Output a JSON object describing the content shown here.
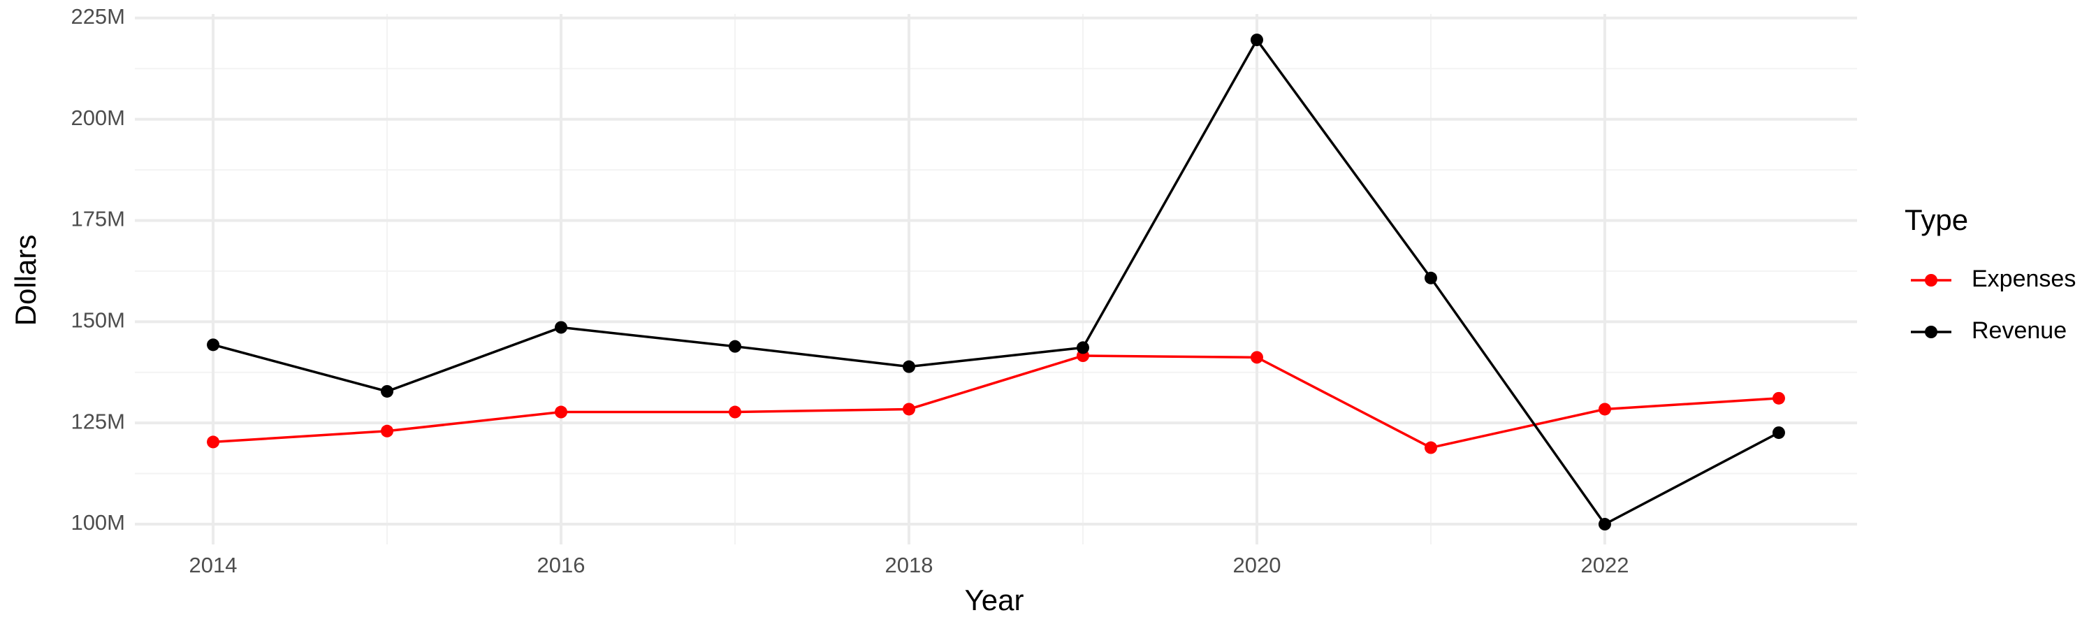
{
  "chart_data": {
    "type": "line",
    "x_label": "Year",
    "y_label": "Dollars",
    "legend_title": "Type",
    "legend_position": "right",
    "grid": true,
    "x": [
      2014,
      2015,
      2016,
      2017,
      2018,
      2019,
      2020,
      2021,
      2022,
      2023
    ],
    "series": [
      {
        "name": "Expenses",
        "color": "#ff0000",
        "values": [
          120300000,
          123000000,
          127700000,
          127700000,
          128400000,
          141600000,
          141200000,
          118900000,
          128400000,
          131100000
        ]
      },
      {
        "name": "Revenue",
        "color": "#000000",
        "values": [
          144300000,
          132800000,
          148600000,
          143900000,
          138900000,
          143600000,
          219600000,
          160800000,
          100000000,
          122600000
        ]
      }
    ],
    "xlim": [
      2013.55,
      2023.45
    ],
    "xticks": [
      2014,
      2016,
      2018,
      2020,
      2022
    ],
    "ylim": [
      95000000,
      226000000
    ],
    "yticks": [
      {
        "value": 100000000,
        "label": "100M"
      },
      {
        "value": 125000000,
        "label": "125M"
      },
      {
        "value": 150000000,
        "label": "150M"
      },
      {
        "value": 175000000,
        "label": "175M"
      },
      {
        "value": 200000000,
        "label": "200M"
      },
      {
        "value": 225000000,
        "label": "225M"
      }
    ]
  }
}
